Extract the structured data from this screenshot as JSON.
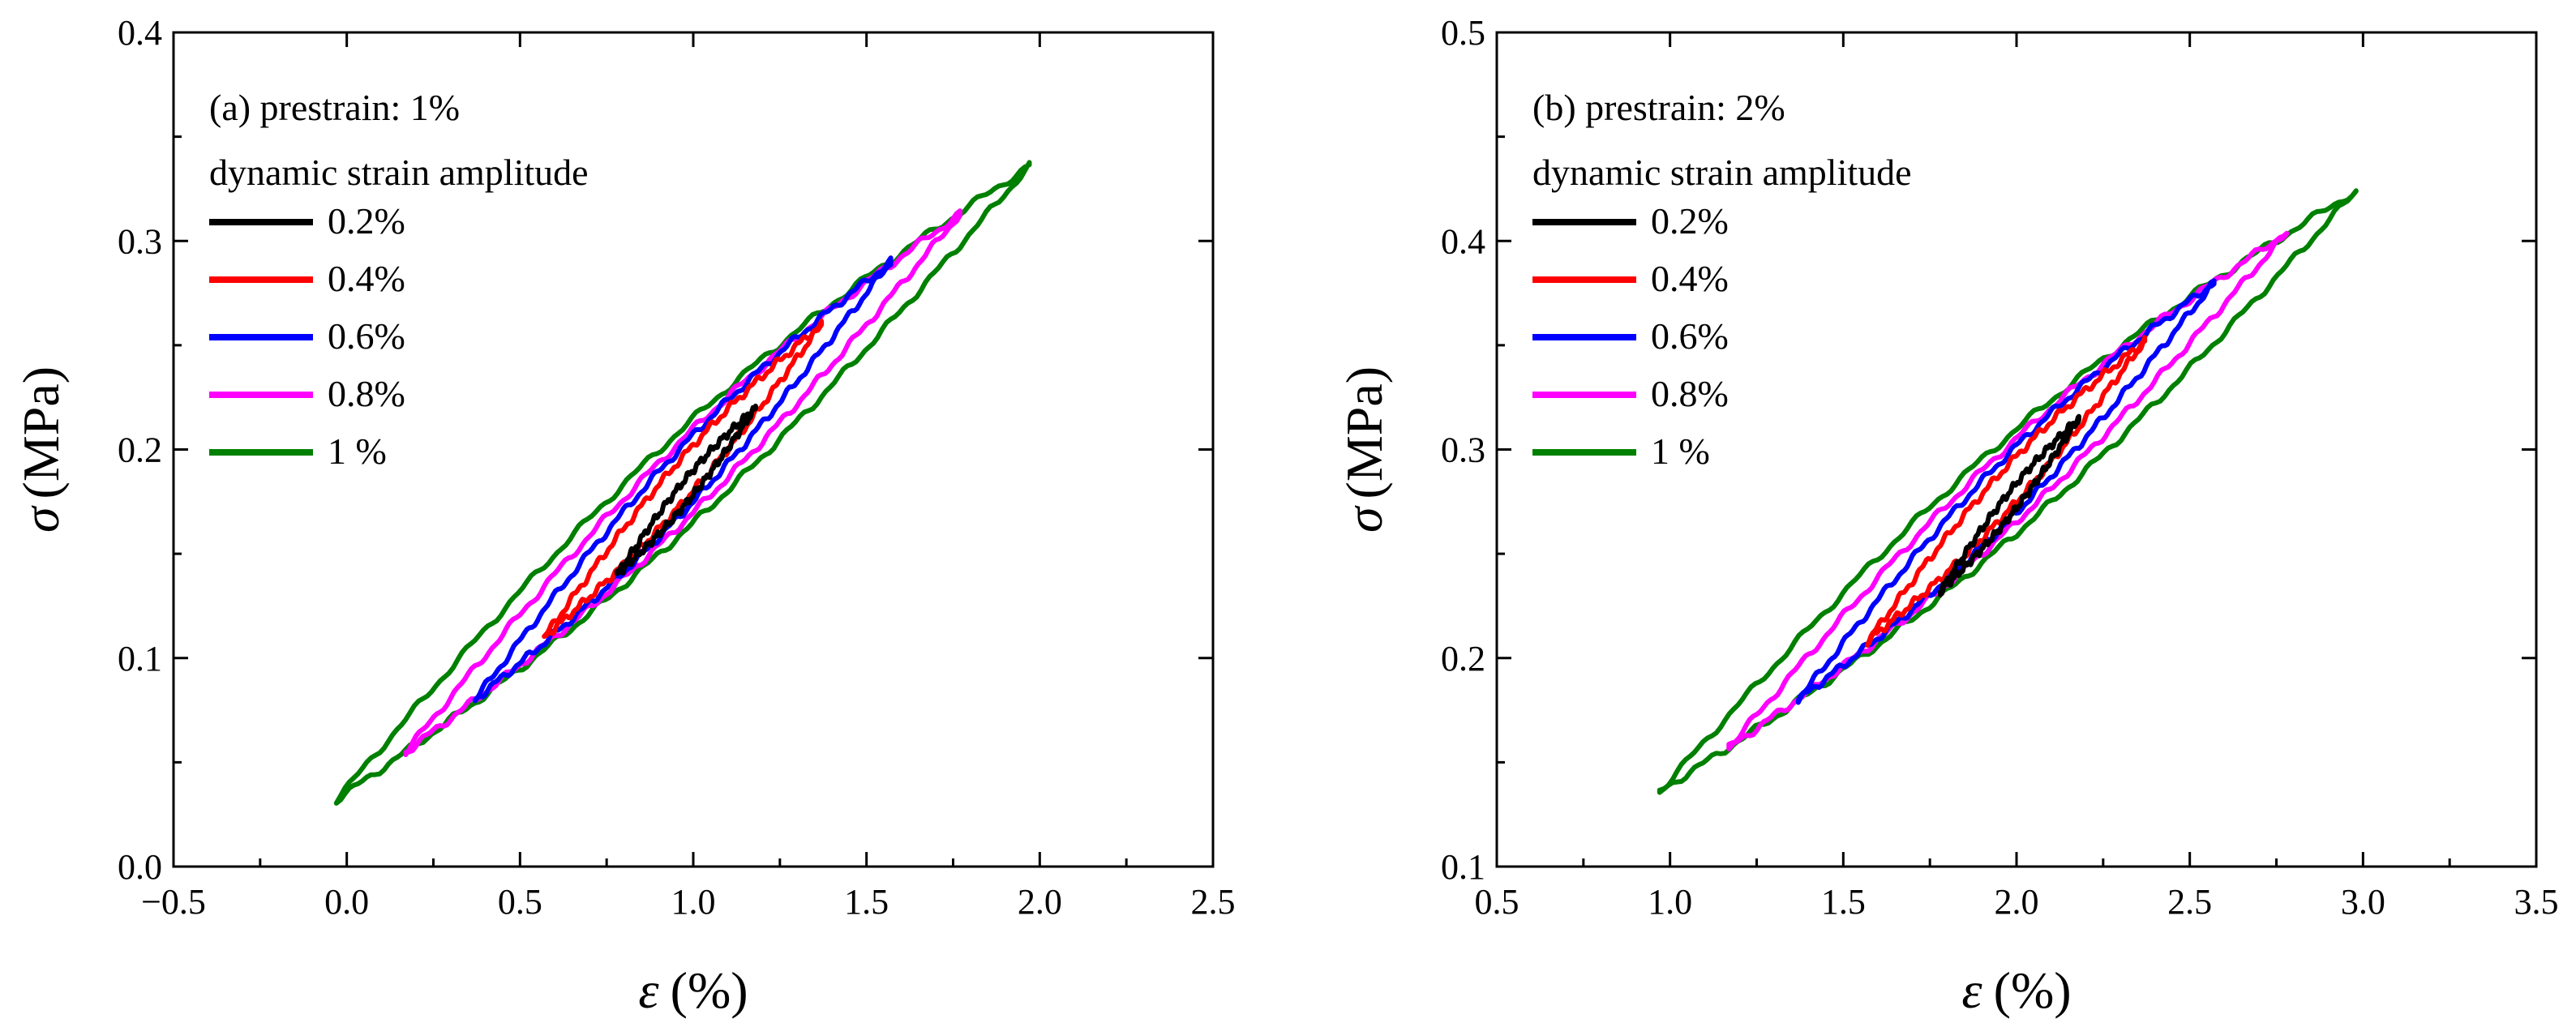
{
  "chart_data": [
    {
      "type": "line",
      "title": "(a)  prestrain: 1%",
      "xlabel_symbol": "ε",
      "xlabel_unit": "(%)",
      "ylabel_symbol": "σ",
      "ylabel_unit": "(MPa)",
      "xlim": [
        -0.5,
        2.5
      ],
      "ylim": [
        0.0,
        0.4
      ],
      "xticks": [
        -0.5,
        0.0,
        0.5,
        1.0,
        1.5,
        2.0,
        2.5
      ],
      "yticks": [
        0.0,
        0.1,
        0.2,
        0.3,
        0.4
      ],
      "xtick_labels": [
        "−0.5",
        "0.0",
        "0.5",
        "1.0",
        "1.5",
        "2.0",
        "2.5"
      ],
      "ytick_labels": [
        "0.0",
        "0.1",
        "0.2",
        "0.3",
        "0.4"
      ],
      "legend_title": "dynamic strain amplitude",
      "legend_position": "top-left",
      "grid": false,
      "series": [
        {
          "name": "0.2%",
          "color": "#000000",
          "start": [
            0.78,
            0.14
          ],
          "end": [
            1.18,
            0.22
          ],
          "width": 0.006
        },
        {
          "name": "0.4%",
          "color": "#ff0000",
          "start": [
            0.57,
            0.11
          ],
          "end": [
            1.37,
            0.26
          ],
          "width": 0.011
        },
        {
          "name": "0.6%",
          "color": "#0000ff",
          "start": [
            0.37,
            0.08
          ],
          "end": [
            1.57,
            0.29
          ],
          "width": 0.016
        },
        {
          "name": "0.8%",
          "color": "#ff00ff",
          "start": [
            0.17,
            0.055
          ],
          "end": [
            1.77,
            0.313
          ],
          "width": 0.02
        },
        {
          "name": "  1 %",
          "color": "#008000",
          "start": [
            -0.03,
            0.032
          ],
          "end": [
            1.97,
            0.336
          ],
          "width": 0.025
        }
      ]
    },
    {
      "type": "line",
      "title": "(b)  prestrain: 2%",
      "xlabel_symbol": "ε",
      "xlabel_unit": "(%)",
      "ylabel_symbol": "σ",
      "ylabel_unit": "(MPa)",
      "xlim": [
        0.5,
        3.5
      ],
      "ylim": [
        0.1,
        0.5
      ],
      "xticks": [
        0.5,
        1.0,
        1.5,
        2.0,
        2.5,
        3.0,
        3.5
      ],
      "yticks": [
        0.1,
        0.2,
        0.3,
        0.4,
        0.5
      ],
      "xtick_labels": [
        "0.5",
        "1.0",
        "1.5",
        "2.0",
        "2.5",
        "3.0",
        "3.5"
      ],
      "ytick_labels": [
        "0.1",
        "0.2",
        "0.3",
        "0.4",
        "0.5"
      ],
      "legend_title": "dynamic strain amplitude",
      "legend_position": "top-left",
      "grid": false,
      "series": [
        {
          "name": "0.2%",
          "color": "#000000",
          "start": [
            1.78,
            0.232
          ],
          "end": [
            2.18,
            0.315
          ],
          "width": 0.006
        },
        {
          "name": "0.4%",
          "color": "#ff0000",
          "start": [
            1.57,
            0.208
          ],
          "end": [
            2.37,
            0.352
          ],
          "width": 0.011
        },
        {
          "name": "0.6%",
          "color": "#0000ff",
          "start": [
            1.37,
            0.18
          ],
          "end": [
            2.57,
            0.38
          ],
          "width": 0.016
        },
        {
          "name": "0.8%",
          "color": "#ff00ff",
          "start": [
            1.17,
            0.157
          ],
          "end": [
            2.78,
            0.404
          ],
          "width": 0.02
        },
        {
          "name": "  1 %",
          "color": "#008000",
          "start": [
            0.97,
            0.136
          ],
          "end": [
            2.98,
            0.424
          ],
          "width": 0.025
        }
      ]
    }
  ]
}
